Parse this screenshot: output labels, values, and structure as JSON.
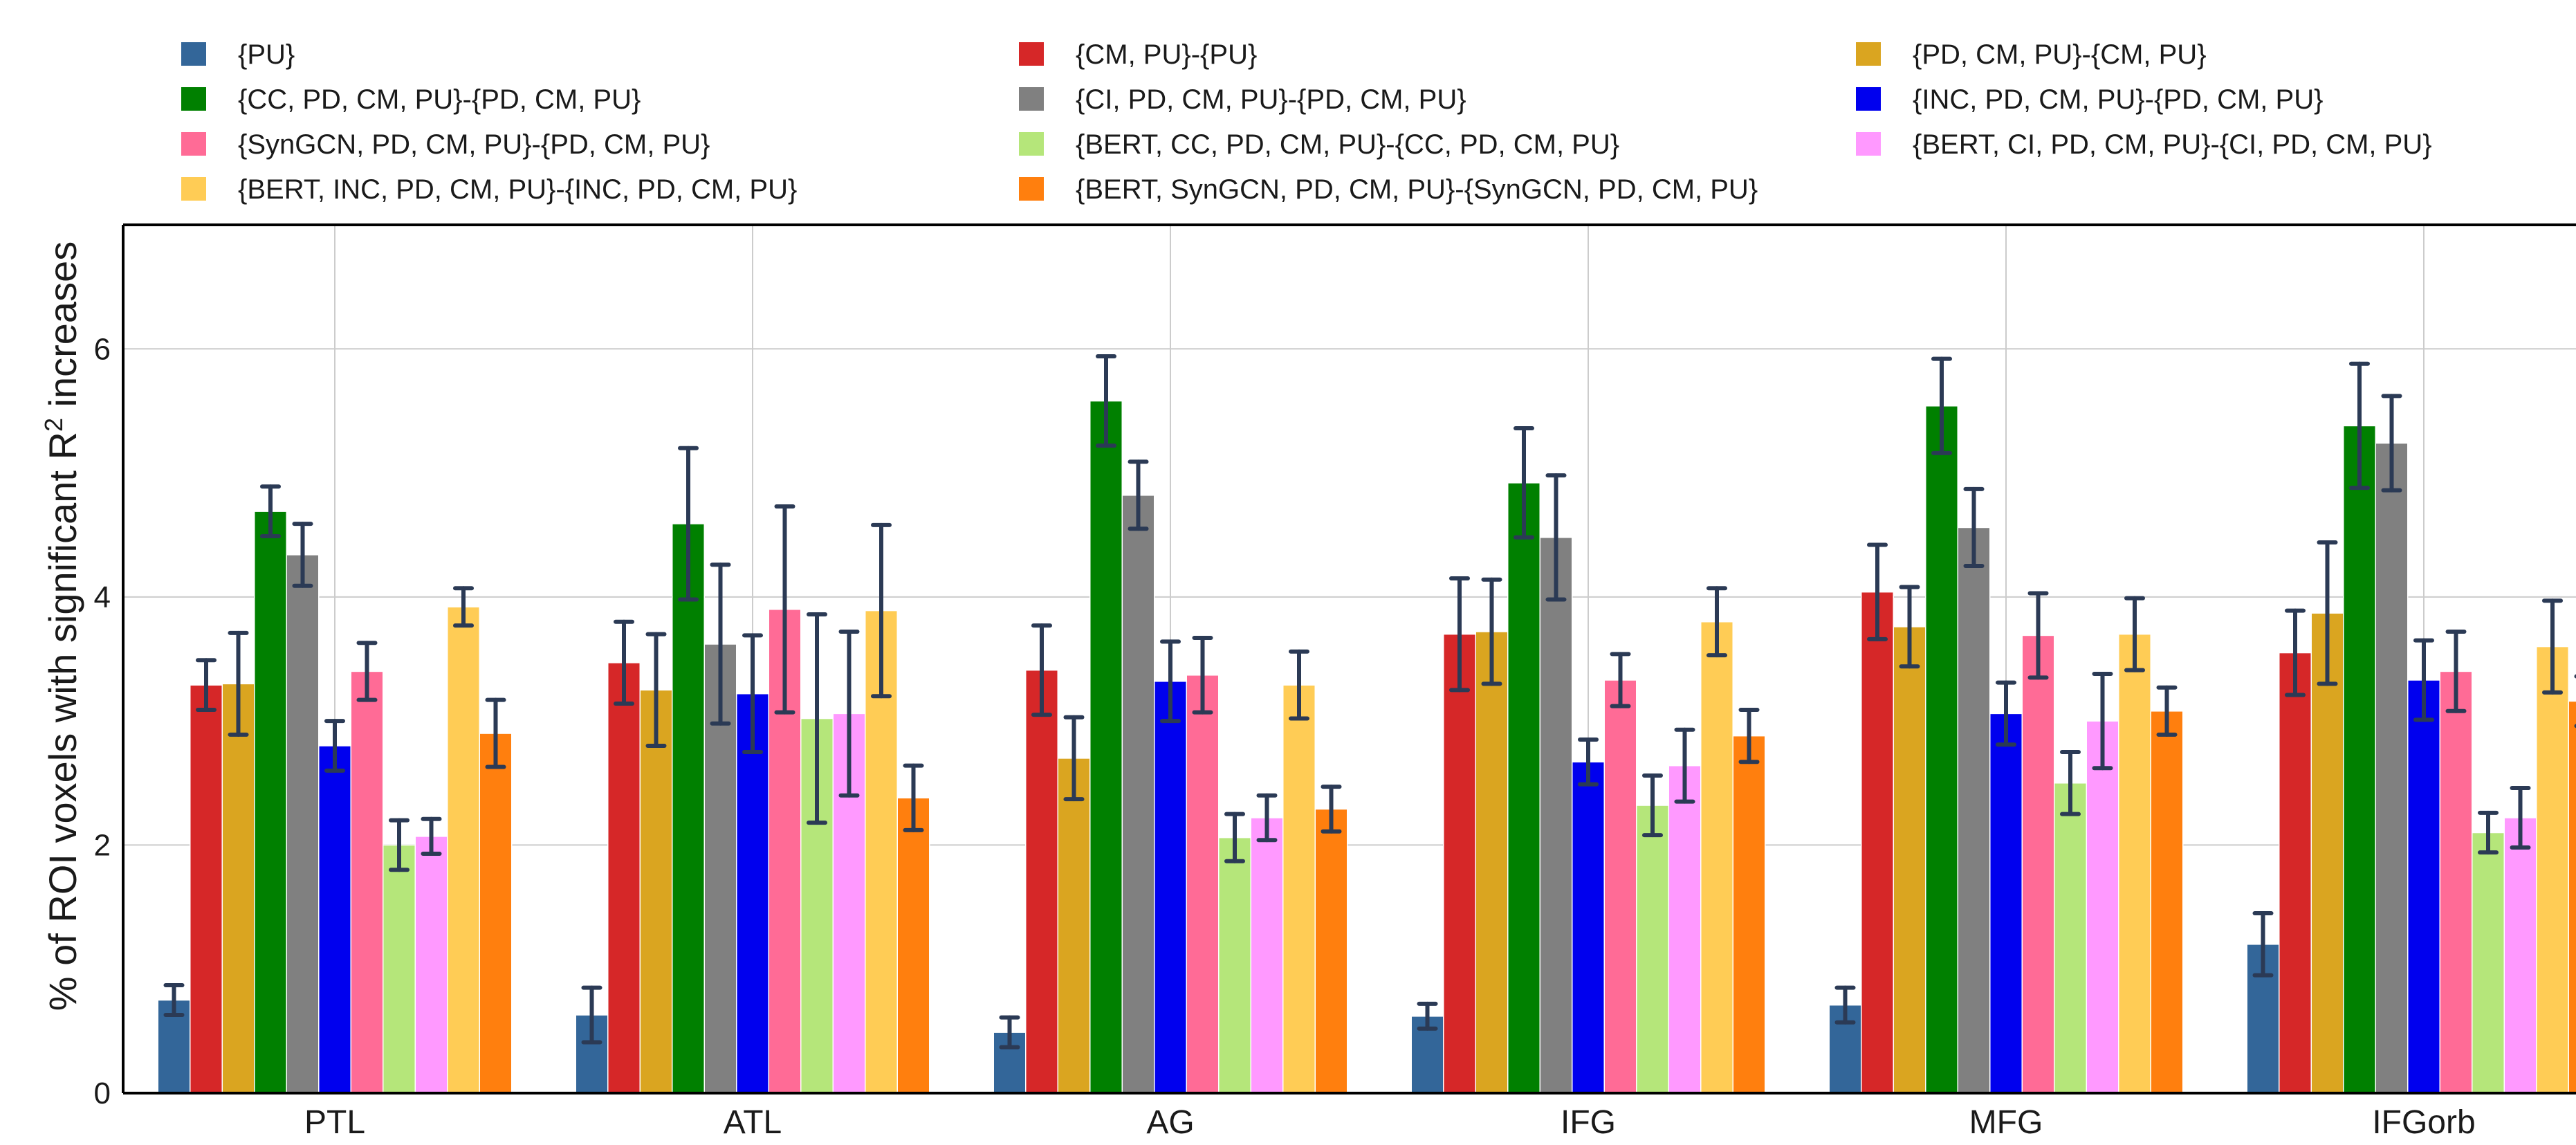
{
  "chart_data": {
    "type": "bar",
    "title": "",
    "xlabel": "",
    "ylabel": "% of ROI voxels with significant R",
    "ylabel_superscript": "2",
    "ylabel_suffix": " increases",
    "ylim": [
      0,
      7
    ],
    "yticks": [
      "0",
      "2",
      "4",
      "6"
    ],
    "ytick_values": [
      0,
      2,
      4,
      6
    ],
    "grid": true,
    "legend_position": "top",
    "categories": [
      "PTL",
      "ATL",
      "AG",
      "IFG",
      "MFG",
      "IFGorb"
    ],
    "series": [
      {
        "name": "{PU}",
        "color": "#336699",
        "values": [
          0.75,
          0.63,
          0.49,
          0.62,
          0.71,
          1.2
        ],
        "errors": [
          0.12,
          0.22,
          0.12,
          0.1,
          0.14,
          0.25
        ]
      },
      {
        "name": "{CM, PU}-{PU}",
        "color": "#d62728",
        "values": [
          3.29,
          3.47,
          3.41,
          3.7,
          4.04,
          3.55
        ],
        "errors": [
          0.2,
          0.33,
          0.36,
          0.45,
          0.38,
          0.34
        ]
      },
      {
        "name": "{PD, CM, PU}-{CM, PU}",
        "color": "#daa520",
        "values": [
          3.3,
          3.25,
          2.7,
          3.72,
          3.76,
          3.87
        ],
        "errors": [
          0.41,
          0.45,
          0.33,
          0.42,
          0.32,
          0.57
        ]
      },
      {
        "name": "{CC, PD, CM, PU}-{PD, CM, PU}",
        "color": "#008000",
        "values": [
          4.69,
          4.59,
          5.58,
          4.92,
          5.54,
          5.38
        ],
        "errors": [
          0.2,
          0.61,
          0.36,
          0.44,
          0.38,
          0.5
        ]
      },
      {
        "name": "{CI, PD, CM, PU}-{PD, CM, PU}",
        "color": "#808080",
        "values": [
          4.34,
          3.62,
          4.82,
          4.48,
          4.56,
          5.24
        ],
        "errors": [
          0.25,
          0.64,
          0.27,
          0.5,
          0.31,
          0.38
        ]
      },
      {
        "name": "{INC, PD, CM, PU}-{PD, CM, PU}",
        "color": "#0000ee",
        "values": [
          2.8,
          3.22,
          3.32,
          2.67,
          3.06,
          3.33
        ],
        "errors": [
          0.2,
          0.47,
          0.32,
          0.18,
          0.25,
          0.32
        ]
      },
      {
        "name": "{SynGCN, PD, CM, PU}-{PD, CM, PU}",
        "color": "#ff6b96",
        "values": [
          3.4,
          3.9,
          3.37,
          3.33,
          3.69,
          3.4
        ],
        "errors": [
          0.23,
          0.83,
          0.3,
          0.21,
          0.34,
          0.32
        ]
      },
      {
        "name": "{BERT, CC, PD, CM, PU}-{CC, PD, CM, PU}",
        "color": "#b5e67a",
        "values": [
          2.0,
          3.02,
          2.06,
          2.32,
          2.5,
          2.1
        ],
        "errors": [
          0.2,
          0.84,
          0.19,
          0.24,
          0.25,
          0.16
        ]
      },
      {
        "name": "{BERT, CI, PD, CM, PU}-{CI, PD, CM, PU}",
        "color": "#ff99ff",
        "values": [
          2.07,
          3.06,
          2.22,
          2.64,
          3.0,
          2.22
        ],
        "errors": [
          0.14,
          0.66,
          0.18,
          0.29,
          0.38,
          0.24
        ]
      },
      {
        "name": "{BERT, INC, PD, CM, PU}-{INC, PD, CM, PU}",
        "color": "#ffcc55",
        "values": [
          3.92,
          3.89,
          3.29,
          3.8,
          3.7,
          3.6
        ],
        "errors": [
          0.15,
          0.69,
          0.27,
          0.27,
          0.29,
          0.37
        ]
      },
      {
        "name": "{BERT, SynGCN, PD, CM, PU}-{SynGCN, PD, CM, PU}",
        "color": "#ff7f0e",
        "values": [
          2.9,
          2.38,
          2.29,
          2.88,
          3.08,
          3.16
        ],
        "errors": [
          0.27,
          0.26,
          0.18,
          0.21,
          0.19,
          0.2
        ]
      }
    ]
  }
}
